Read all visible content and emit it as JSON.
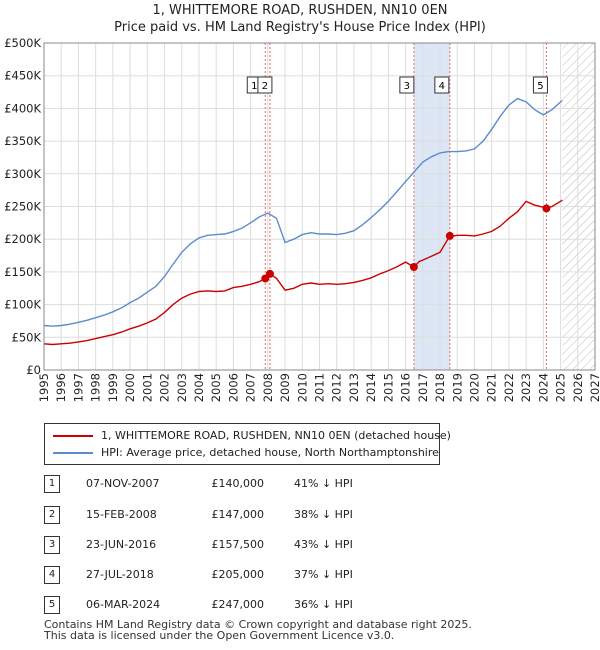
{
  "title_line1": "1, WHITTEMORE ROAD, RUSHDEN, NN10 0EN",
  "title_line2": "Price paid vs. HM Land Registry's House Price Index (HPI)",
  "chart_data": {
    "type": "line",
    "ylim": [
      0,
      500000
    ],
    "xlim": [
      1995,
      2027
    ],
    "y_ticks": [
      0,
      50000,
      100000,
      150000,
      200000,
      250000,
      300000,
      350000,
      400000,
      450000,
      500000
    ],
    "y_tick_labels": [
      "£0",
      "£50K",
      "£100K",
      "£150K",
      "£200K",
      "£250K",
      "£300K",
      "£350K",
      "£400K",
      "£450K",
      "£500K"
    ],
    "x_ticks": [
      1995,
      1996,
      1997,
      1998,
      1999,
      2000,
      2001,
      2002,
      2003,
      2004,
      2005,
      2006,
      2007,
      2008,
      2009,
      2010,
      2011,
      2012,
      2013,
      2014,
      2015,
      2016,
      2017,
      2018,
      2019,
      2020,
      2021,
      2022,
      2023,
      2024,
      2025,
      2026,
      2027
    ],
    "data_end": 2025.1,
    "grid": true,
    "colors": {
      "property": "#cc0000",
      "hpi": "#5b8ccc",
      "marker_line": "#ee6666",
      "shade": "#dde6f5"
    },
    "series": [
      {
        "name": "1, WHITTEMORE ROAD, RUSHDEN, NN10 0EN (detached house)",
        "color": "#cc0000",
        "x": [
          1995,
          1995.5,
          1996,
          1996.5,
          1997,
          1997.5,
          1998,
          1998.5,
          1999,
          1999.5,
          2000,
          2000.5,
          2001,
          2001.5,
          2002,
          2002.5,
          2003,
          2003.5,
          2004,
          2004.5,
          2005,
          2005.5,
          2006,
          2006.5,
          2007,
          2007.5,
          2007.85,
          2008.12,
          2008.5,
          2009,
          2009.5,
          2010,
          2010.5,
          2011,
          2011.5,
          2012,
          2012.5,
          2013,
          2013.5,
          2014,
          2014.5,
          2015,
          2015.5,
          2016,
          2016.48,
          2016.8,
          2017,
          2017.5,
          2018,
          2018.57,
          2018.8,
          2019,
          2019.5,
          2020,
          2020.5,
          2021,
          2021.5,
          2022,
          2022.5,
          2023,
          2023.5,
          2024,
          2024.18,
          2024.5,
          2025,
          2025.1
        ],
        "values": [
          40000,
          39000,
          40000,
          41000,
          43000,
          45000,
          48000,
          51000,
          54000,
          58000,
          63000,
          67000,
          72000,
          78000,
          88000,
          100000,
          110000,
          116000,
          120000,
          121000,
          120000,
          121000,
          126000,
          128000,
          131000,
          135000,
          140000,
          147000,
          140000,
          122000,
          125000,
          131000,
          133000,
          131000,
          132000,
          131000,
          132000,
          134000,
          137000,
          141000,
          147000,
          152000,
          158000,
          165000,
          157500,
          166000,
          168000,
          174000,
          180000,
          205000,
          205000,
          206000,
          206000,
          205000,
          208000,
          212000,
          220000,
          232000,
          242000,
          258000,
          252000,
          249000,
          247000,
          250000,
          258000,
          260000
        ]
      },
      {
        "name": "HPI: Average price, detached house, North Northamptonshire",
        "color": "#5b8ccc",
        "x": [
          1995,
          1995.5,
          1996,
          1996.5,
          1997,
          1997.5,
          1998,
          1998.5,
          1999,
          1999.5,
          2000,
          2000.5,
          2001,
          2001.5,
          2002,
          2002.5,
          2003,
          2003.5,
          2004,
          2004.5,
          2005,
          2005.5,
          2006,
          2006.5,
          2007,
          2007.5,
          2008,
          2008.5,
          2009,
          2009.5,
          2010,
          2010.5,
          2011,
          2011.5,
          2012,
          2012.5,
          2013,
          2013.5,
          2014,
          2014.5,
          2015,
          2015.5,
          2016,
          2016.5,
          2017,
          2017.5,
          2018,
          2018.5,
          2019,
          2019.5,
          2020,
          2020.5,
          2021,
          2021.5,
          2022,
          2022.5,
          2023,
          2023.5,
          2024,
          2024.5,
          2025,
          2025.1
        ],
        "values": [
          68000,
          67000,
          68000,
          70000,
          73000,
          76000,
          80000,
          84000,
          89000,
          95000,
          103000,
          110000,
          119000,
          128000,
          143000,
          162000,
          180000,
          193000,
          202000,
          206000,
          207000,
          208000,
          212000,
          217000,
          225000,
          234000,
          240000,
          232000,
          195000,
          200000,
          207000,
          210000,
          208000,
          208000,
          207000,
          209000,
          213000,
          222000,
          233000,
          245000,
          258000,
          273000,
          288000,
          303000,
          318000,
          326000,
          332000,
          334000,
          334000,
          335000,
          338000,
          350000,
          368000,
          388000,
          405000,
          415000,
          410000,
          398000,
          390000,
          398000,
          410000,
          412000
        ]
      }
    ],
    "transactions": [
      {
        "n": "1",
        "date": "07-NOV-2007",
        "x": 2007.85,
        "price": 140000,
        "price_label": "£140,000",
        "hpi": "41% ↓ HPI"
      },
      {
        "n": "2",
        "date": "15-FEB-2008",
        "x": 2008.12,
        "price": 147000,
        "price_label": "£147,000",
        "hpi": "38% ↓ HPI"
      },
      {
        "n": "3",
        "date": "23-JUN-2016",
        "x": 2016.48,
        "price": 157500,
        "price_label": "£157,500",
        "hpi": "43% ↓ HPI"
      },
      {
        "n": "4",
        "date": "27-JUL-2018",
        "x": 2018.57,
        "price": 205000,
        "price_label": "£205,000",
        "hpi": "37% ↓ HPI"
      },
      {
        "n": "5",
        "date": "06-MAR-2024",
        "x": 2024.18,
        "price": 247000,
        "price_label": "£247,000",
        "hpi": "36% ↓ HPI"
      }
    ],
    "shaded_ranges": [
      [
        2016.48,
        2018.57
      ]
    ]
  },
  "legend": {
    "property": "1, WHITTEMORE ROAD, RUSHDEN, NN10 0EN (detached house)",
    "hpi": "HPI: Average price, detached house, North Northamptonshire"
  },
  "footer_line1": "Contains HM Land Registry data © Crown copyright and database right 2025.",
  "footer_line2": "This data is licensed under the Open Government Licence v3.0."
}
